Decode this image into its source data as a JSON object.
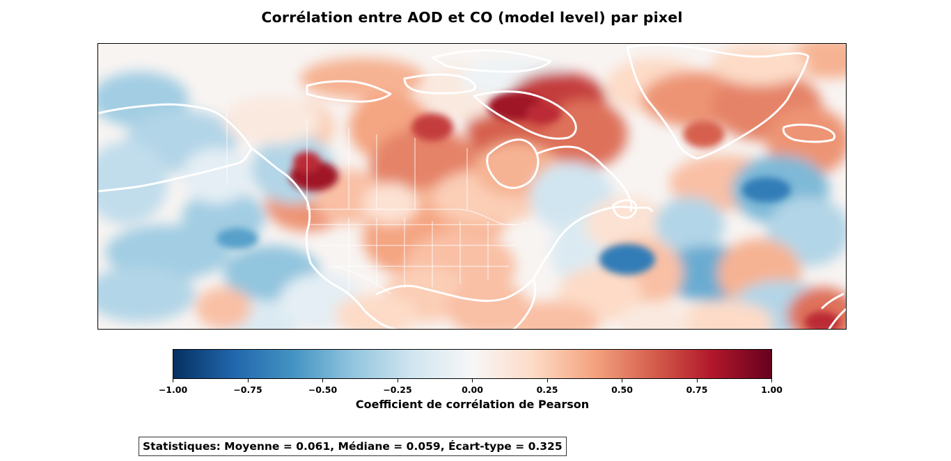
{
  "title": "Corrélation entre AOD et CO (model level) par pixel",
  "colorbar": {
    "label": "Coefficient de corrélation de Pearson",
    "min": -1.0,
    "max": 1.0,
    "colormap": "RdBu_r",
    "colors": [
      "#053061",
      "#2166ac",
      "#4393c3",
      "#92c5de",
      "#d1e5f0",
      "#f7f7f7",
      "#fddbc7",
      "#f4a582",
      "#d6604d",
      "#b2182b",
      "#67001f"
    ],
    "ticks": [
      {
        "value": -1.0,
        "label": "−1.00"
      },
      {
        "value": -0.75,
        "label": "−0.75"
      },
      {
        "value": -0.5,
        "label": "−0.50"
      },
      {
        "value": -0.25,
        "label": "−0.25"
      },
      {
        "value": 0.0,
        "label": "0.00"
      },
      {
        "value": 0.25,
        "label": "0.25"
      },
      {
        "value": 0.5,
        "label": "0.50"
      },
      {
        "value": 0.75,
        "label": "0.75"
      },
      {
        "value": 1.0,
        "label": "1.00"
      }
    ]
  },
  "map": {
    "region": "North America and North Atlantic",
    "coastline_color": "#ffffff",
    "border_color": "#ffffff"
  },
  "stats": {
    "text": "Statistiques: Moyenne = 0.061, Médiane = 0.059, Écart-type = 0.325",
    "mean": 0.061,
    "median": 0.059,
    "std": 0.325
  }
}
